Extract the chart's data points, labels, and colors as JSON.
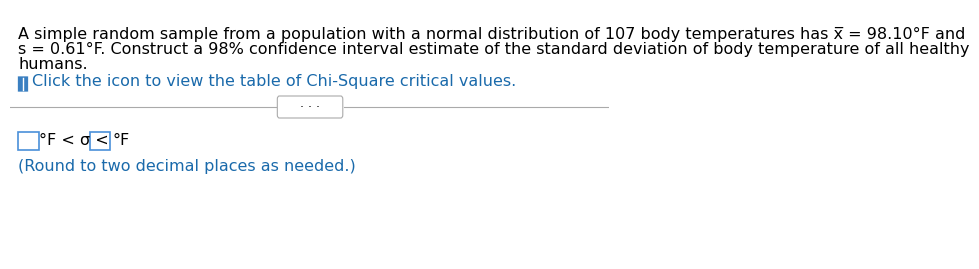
{
  "bg_color": "#ffffff",
  "main_text_line1": "A simple random sample from a population with a normal distribution of 107 body temperatures has x̅ = 98.10°F and",
  "main_text_line2": "s = 0.61°F. Construct a 98% confidence interval estimate of the standard deviation of body temperature of all healthy",
  "main_text_line3": "humans.",
  "icon_text": "Click the icon to view the table of Chi-Square critical values.",
  "dots_text": "· · ·",
  "formula_text": "°F < σ <",
  "formula_text2": "°F",
  "note_text": "(Round to two decimal places as needed.)",
  "main_font_size": 11.5,
  "icon_font_size": 11.5,
  "note_font_size": 11.5,
  "text_color": "#000000",
  "blue_color": "#1a6aab",
  "note_color": "#1a6aab",
  "icon_color": "#3a7fc1"
}
